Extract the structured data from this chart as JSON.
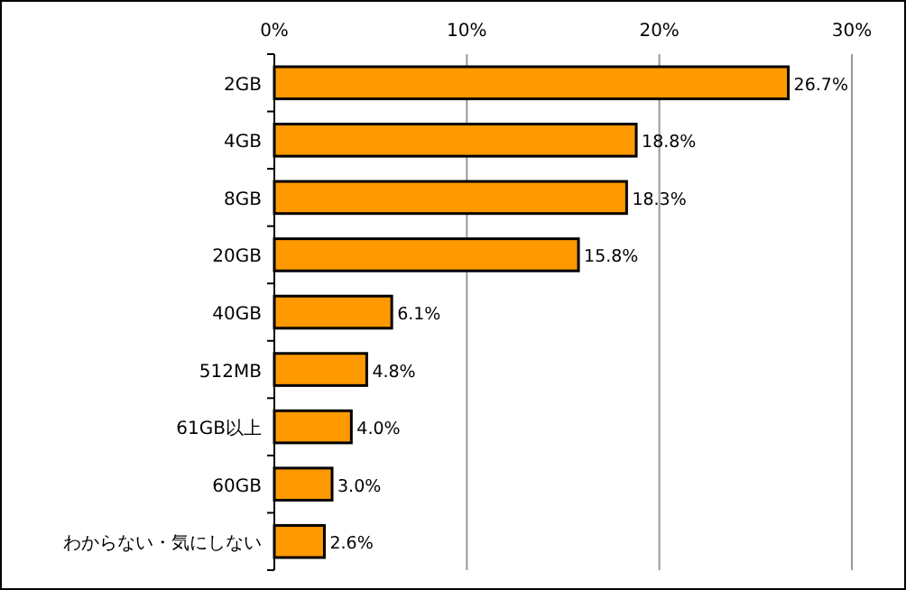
{
  "chart_data": {
    "type": "bar",
    "orientation": "horizontal",
    "categories": [
      "2GB",
      "4GB",
      "8GB",
      "20GB",
      "40GB",
      "512MB",
      "61GB以上",
      "60GB",
      "わからない・気にしない"
    ],
    "values": [
      26.7,
      18.8,
      18.3,
      15.8,
      6.1,
      4.8,
      4.0,
      3.0,
      2.6
    ],
    "value_labels": [
      "26.7%",
      "18.8%",
      "18.3%",
      "15.8%",
      "6.1%",
      "4.8%",
      "4.0%",
      "3.0%",
      "2.6%"
    ],
    "color": "#ff9900",
    "xlim": [
      0,
      30
    ],
    "xticks": [
      {
        "value": 0,
        "label": "0%"
      },
      {
        "value": 10,
        "label": "10%"
      },
      {
        "value": 20,
        "label": "20%"
      },
      {
        "value": 30,
        "label": "30%"
      }
    ],
    "grid": "x"
  }
}
